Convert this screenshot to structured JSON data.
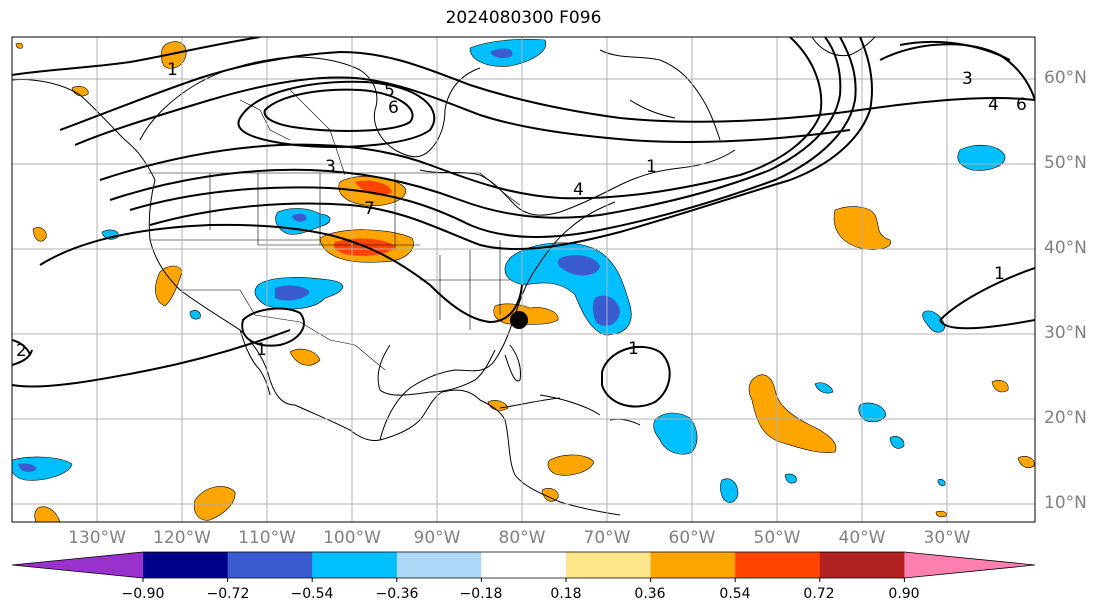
{
  "title": "2024080300 F096",
  "lat_labels": [
    "60°N",
    "50°N",
    "40°N",
    "30°N",
    "20°N",
    "10°N"
  ],
  "lon_labels": [
    "130°W",
    "120°W",
    "110°W",
    "100°W",
    "90°W",
    "80°W",
    "70°W",
    "60°W",
    "50°W",
    "40°W",
    "30°W"
  ],
  "contour_labels": [
    "1",
    "5",
    "6",
    "3",
    "7",
    "4",
    "1",
    "1",
    "1",
    "2",
    "3",
    "4",
    "6",
    "1"
  ],
  "colorbar": {
    "ticks": [
      "−0.90",
      "−0.72",
      "−0.54",
      "−0.36",
      "−0.18",
      "0.18",
      "0.36",
      "0.54",
      "0.72",
      "0.90"
    ],
    "colors": [
      "#9932cc",
      "#00008b",
      "#3a5bd0",
      "#00bfff",
      "#add8f8",
      "#ffffff",
      "#fde68a",
      "#ffa500",
      "#ff4500",
      "#b22222",
      "#ff80b0"
    ]
  },
  "map_extent": {
    "lon_min": -140,
    "lon_max": -20,
    "lat_min": 8,
    "lat_max": 65
  },
  "storm_marker": {
    "lon": -80.3,
    "lat": 31.9
  }
}
